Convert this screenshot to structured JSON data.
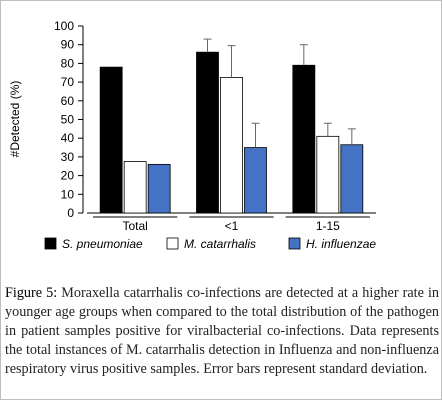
{
  "chart_data": {
    "type": "bar",
    "categories": [
      "Total",
      "<1",
      "1-15"
    ],
    "series": [
      {
        "name": "S. pneumoniae",
        "color": "#000000",
        "values": [
          78,
          86,
          79
        ],
        "errors": [
          null,
          7,
          11
        ]
      },
      {
        "name": "M. catarrhalis",
        "color": "#ffffff",
        "values": [
          27.5,
          72.5,
          41
        ],
        "errors": [
          null,
          17,
          7
        ]
      },
      {
        "name": "H. influenzae",
        "color": "#4472c4",
        "values": [
          26,
          35,
          36.5
        ],
        "errors": [
          null,
          13,
          8.5
        ]
      }
    ],
    "title": "",
    "xlabel": "",
    "ylabel": "#Detected (%)",
    "ylim": [
      0,
      100
    ],
    "yticks": [
      "0",
      "10",
      "20",
      "30",
      "40",
      "50",
      "60",
      "70",
      "80",
      "90",
      "100"
    ],
    "grid": false,
    "legend": "bottom"
  },
  "caption": {
    "label": "Figure 5:",
    "text": " Moraxella catarrhalis co-infections are detected at a higher rate in younger age groups when compared to the total distribution of the pathogen in patient samples positive for viralbacterial co-infections. Data represents the total instances of M. catarrhalis detection in Influenza and non-influenza respiratory virus positive samples. Error bars represent standard deviation."
  }
}
